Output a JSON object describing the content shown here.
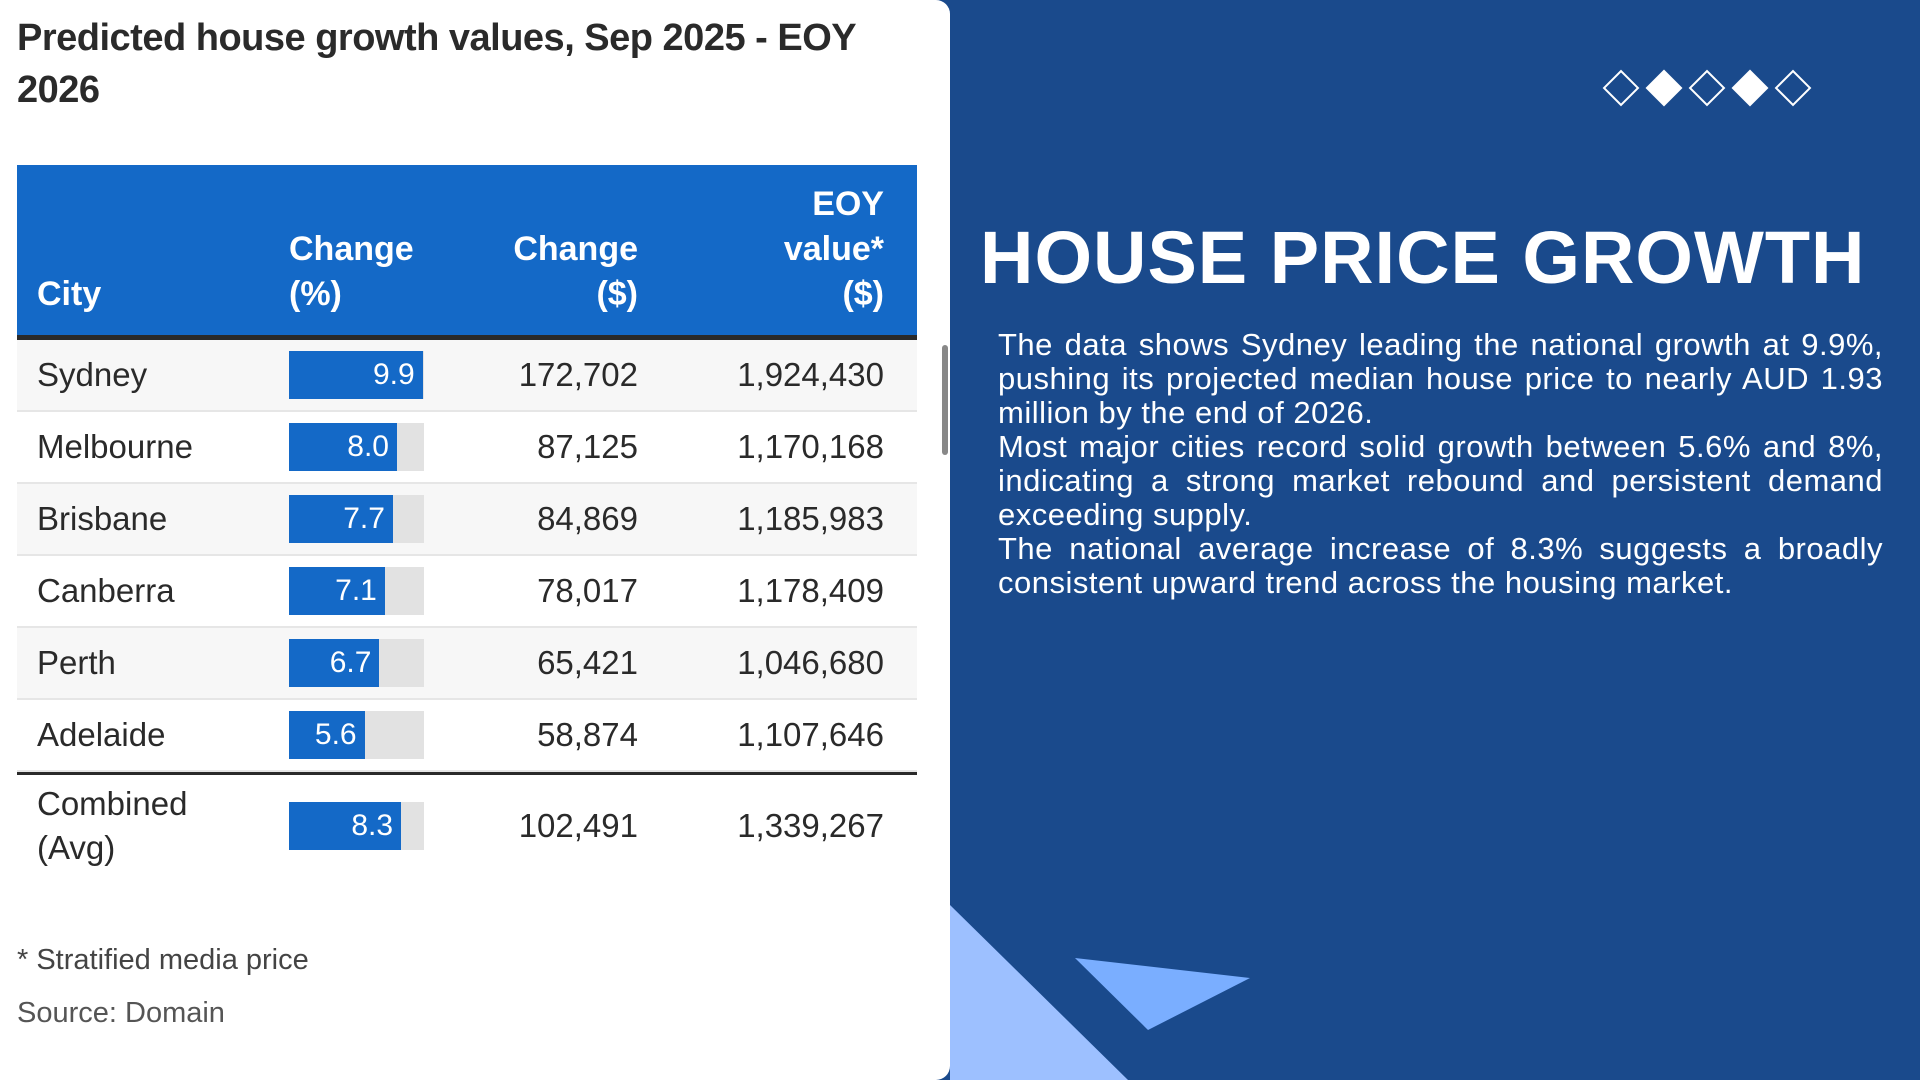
{
  "table_panel": {
    "title": "Predicted house growth values, Sep 2025 - EOY 2026",
    "headers": {
      "city": "City",
      "change_pct_1": "Change",
      "change_pct_2": "(%)",
      "change_dollar_1": "Change",
      "change_dollar_2": "($)",
      "eoy_1": "EOY",
      "eoy_2": "value*",
      "eoy_3": "($)"
    },
    "rows": [
      {
        "city": "Sydney",
        "pct": "9.9",
        "pct_value": 9.9,
        "change": "172,702",
        "eoy": "1,924,430"
      },
      {
        "city": "Melbourne",
        "pct": "8.0",
        "pct_value": 8.0,
        "change": "87,125",
        "eoy": "1,170,168"
      },
      {
        "city": "Brisbane",
        "pct": "7.7",
        "pct_value": 7.7,
        "change": "84,869",
        "eoy": "1,185,983"
      },
      {
        "city": "Canberra",
        "pct": "7.1",
        "pct_value": 7.1,
        "change": "78,017",
        "eoy": "1,178,409"
      },
      {
        "city": "Perth",
        "pct": "6.7",
        "pct_value": 6.7,
        "change": "65,421",
        "eoy": "1,046,680"
      },
      {
        "city": "Adelaide",
        "pct": "5.6",
        "pct_value": 5.6,
        "change": "58,874",
        "eoy": "1,107,646"
      }
    ],
    "combined": {
      "city_1": "Combined",
      "city_2": "(Avg)",
      "pct": "8.3",
      "pct_value": 8.3,
      "change": "102,491",
      "eoy": "1,339,267"
    },
    "footnote": "* Stratified media price",
    "source": "Source: Domain"
  },
  "info_panel": {
    "heading": "HOUSE PRICE GROWTH",
    "paragraphs": [
      "The data shows Sydney leading the national growth at 9.9%, pushing its projected median house price to nearly AUD 1.93 million by the end of 2026.",
      "Most major cities record solid growth between 5.6% and 8%, indicating a strong market rebound and persistent demand exceeding supply.",
      "The national average increase of 8.3% suggests a broadly consistent upward trend across the housing market."
    ],
    "diamonds": [
      false,
      true,
      false,
      true,
      false
    ]
  },
  "colors": {
    "panel_bg": "#1a4a8c",
    "header_blue": "#1469c7",
    "light_triangle": "#9dc0ff",
    "mid_triangle": "#7aaeff"
  }
}
